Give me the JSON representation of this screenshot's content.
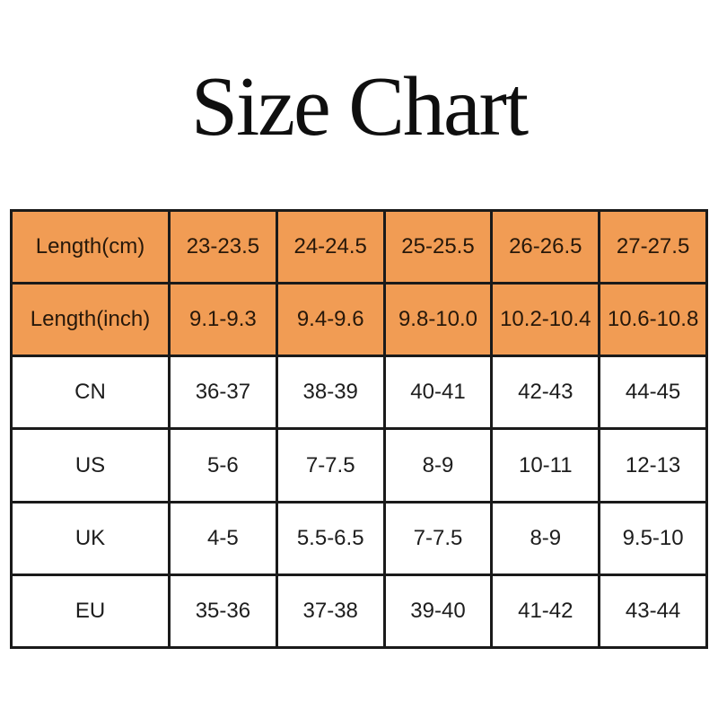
{
  "title": "Size Chart",
  "colors": {
    "page_background": "#ffffff",
    "highlight_row_bg": "#F19C54",
    "table_border": "#1a1a1a",
    "highlight_text": "#27180a",
    "body_text": "#1d1d1d",
    "title_text": "#0f0f0f"
  },
  "chart_data": {
    "type": "table",
    "title": "Size Chart",
    "layout": {
      "highlight_rows": [
        0,
        1
      ],
      "grid": "heavy black borders, first column wider, all cells center-aligned"
    },
    "rows": [
      {
        "label": "Length(cm)",
        "highlight": true,
        "values": [
          "23-23.5",
          "24-24.5",
          "25-25.5",
          "26-26.5",
          "27-27.5"
        ]
      },
      {
        "label": "Length(inch)",
        "highlight": true,
        "values": [
          "9.1-9.3",
          "9.4-9.6",
          "9.8-10.0",
          "10.2-10.4",
          "10.6-10.8"
        ]
      },
      {
        "label": "CN",
        "highlight": false,
        "values": [
          "36-37",
          "38-39",
          "40-41",
          "42-43",
          "44-45"
        ]
      },
      {
        "label": "US",
        "highlight": false,
        "values": [
          "5-6",
          "7-7.5",
          "8-9",
          "10-11",
          "12-13"
        ]
      },
      {
        "label": "UK",
        "highlight": false,
        "values": [
          "4-5",
          "5.5-6.5",
          "7-7.5",
          "8-9",
          "9.5-10"
        ]
      },
      {
        "label": "EU",
        "highlight": false,
        "values": [
          "35-36",
          "37-38",
          "39-40",
          "41-42",
          "43-44"
        ]
      }
    ]
  }
}
